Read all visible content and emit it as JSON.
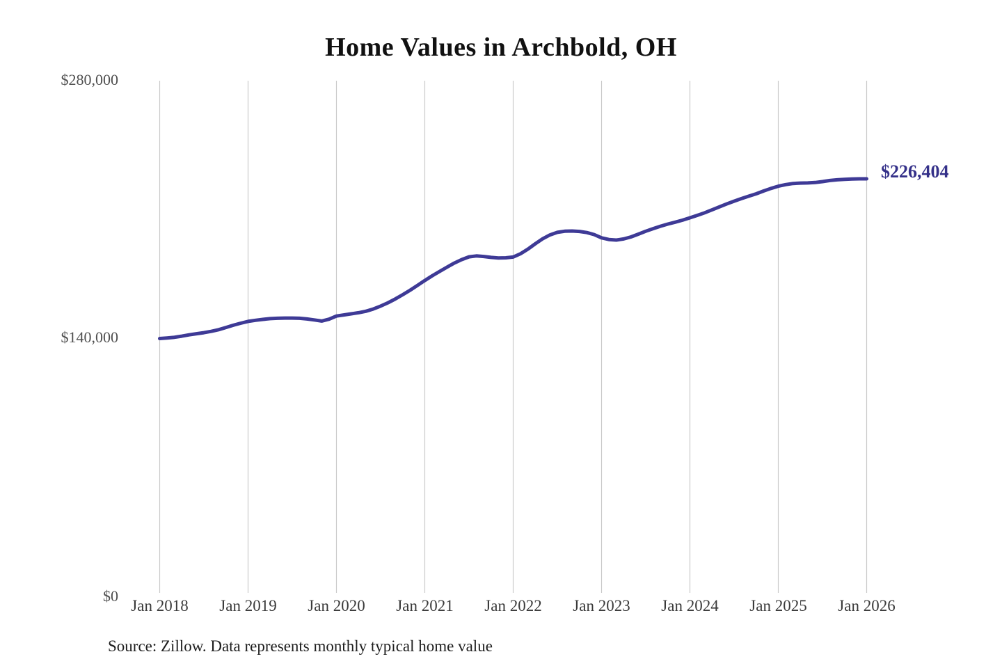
{
  "title": "Home Values in Archbold, OH",
  "source_note": "Source: Zillow. Data represents monthly typical home value",
  "colors": {
    "line": "#3e3a96",
    "annotation_text": "#343089",
    "gridline": "#c9c9c9",
    "y_tick_label": "#4f4f4f",
    "x_tick_label": "#3a3a3a",
    "title_text": "#111111",
    "background": "#ffffff"
  },
  "chart_data": {
    "type": "line",
    "title": "Home Values in Archbold, OH",
    "xlabel": "",
    "ylabel": "",
    "ylim": [
      0,
      280000
    ],
    "y_tick_labels": [
      "$0",
      "$140,000",
      "$280,000"
    ],
    "x_tick_labels": [
      "Jan 2018",
      "Jan 2019",
      "Jan 2020",
      "Jan 2021",
      "Jan 2022",
      "Jan 2023",
      "Jan 2024",
      "Jan 2025",
      "Jan 2026"
    ],
    "grid": "vertical-only",
    "legend": "none",
    "frequency": "monthly",
    "x_start": "Jan 2018",
    "x_end": "Jan 2026",
    "end_label": "$226,404",
    "end_value": 226404,
    "series": [
      {
        "name": "Typical home value",
        "values": [
          139800,
          140100,
          140500,
          141100,
          141800,
          142400,
          143000,
          143700,
          144600,
          145800,
          147000,
          148100,
          149100,
          149700,
          150200,
          150600,
          150800,
          150900,
          150900,
          150800,
          150400,
          149900,
          149300,
          150300,
          152000,
          152600,
          153200,
          153800,
          154600,
          155800,
          157400,
          159200,
          161300,
          163600,
          166000,
          168600,
          171300,
          173800,
          176200,
          178500,
          180700,
          182600,
          184100,
          184600,
          184300,
          183800,
          183500,
          183600,
          184000,
          185800,
          188300,
          191200,
          193900,
          196000,
          197400,
          198000,
          198100,
          197900,
          197300,
          196200,
          194400,
          193500,
          193200,
          193800,
          194900,
          196400,
          198000,
          199400,
          200700,
          201900,
          202900,
          204000,
          205300,
          206600,
          208000,
          209600,
          211200,
          212800,
          214300,
          215700,
          217000,
          218300,
          219800,
          221200,
          222400,
          223300,
          223900,
          224100,
          224200,
          224400,
          224900,
          225500,
          225900,
          226100,
          226300,
          226400,
          226404
        ]
      }
    ]
  }
}
